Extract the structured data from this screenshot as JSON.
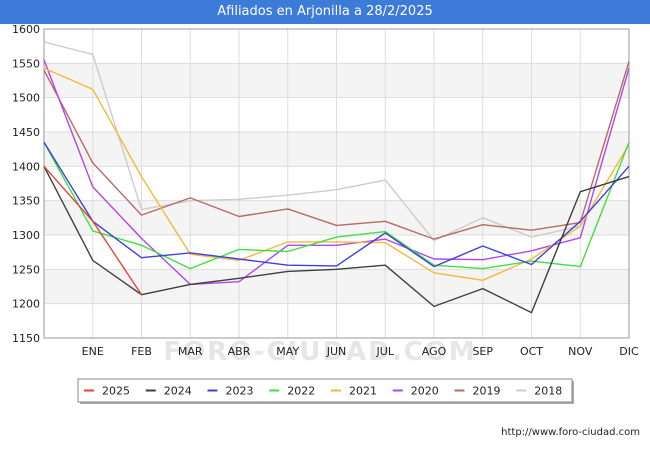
{
  "header": {
    "title": "Afiliados en Arjonilla a 28/2/2025"
  },
  "credit": "http://www.foro-ciudad.com",
  "watermark": "FORO-CIUDAD.COM",
  "chart_data": {
    "type": "line",
    "title": "Afiliados en Arjonilla a 28/2/2025",
    "xlabel": "",
    "ylabel": "",
    "categories": [
      "",
      "ENE",
      "FEB",
      "MAR",
      "ABR",
      "MAY",
      "JUN",
      "JUL",
      "AGO",
      "SEP",
      "OCT",
      "NOV",
      "DIC"
    ],
    "ylim": [
      1150,
      1600
    ],
    "yticks": [
      1150,
      1200,
      1250,
      1300,
      1350,
      1400,
      1450,
      1500,
      1550,
      1600
    ],
    "grid": true,
    "legend_position": "bottom",
    "series": [
      {
        "name": "2025",
        "color": "#e8433b",
        "values": [
          1400,
          1320,
          1213,
          null,
          null,
          null,
          null,
          null,
          null,
          null,
          null,
          null,
          null
        ]
      },
      {
        "name": "2024",
        "color": "#3f3f3f",
        "values": [
          1400,
          1263,
          1213,
          1228,
          1237,
          1247,
          1250,
          1256,
          1196,
          1222,
          1187,
          1363,
          1385
        ]
      },
      {
        "name": "2023",
        "color": "#4040e0",
        "values": [
          1435,
          1320,
          1267,
          1274,
          1265,
          1256,
          1255,
          1303,
          1254,
          1284,
          1257,
          1320,
          1400
        ]
      },
      {
        "name": "2022",
        "color": "#40e040",
        "values": [
          1435,
          1306,
          1285,
          1251,
          1279,
          1276,
          1297,
          1305,
          1256,
          1251,
          1262,
          1254,
          1435
        ]
      },
      {
        "name": "2021",
        "color": "#f5b93a",
        "values": [
          1543,
          1512,
          1385,
          1272,
          1263,
          1290,
          1290,
          1289,
          1245,
          1234,
          1265,
          1313,
          1432
        ]
      },
      {
        "name": "2020",
        "color": "#b048e8",
        "values": [
          1555,
          1370,
          1295,
          1228,
          1232,
          1285,
          1285,
          1294,
          1265,
          1264,
          1277,
          1296,
          1543
        ]
      },
      {
        "name": "2019",
        "color": "#b86a6a",
        "values": [
          1540,
          1405,
          1329,
          1354,
          1327,
          1338,
          1314,
          1320,
          1294,
          1315,
          1307,
          1318,
          1553
        ]
      },
      {
        "name": "2018",
        "color": "#cccccc",
        "values": [
          1581,
          1563,
          1337,
          1350,
          1352,
          1358,
          1366,
          1380,
          1292,
          1325,
          1297,
          1313,
          null
        ]
      }
    ]
  }
}
